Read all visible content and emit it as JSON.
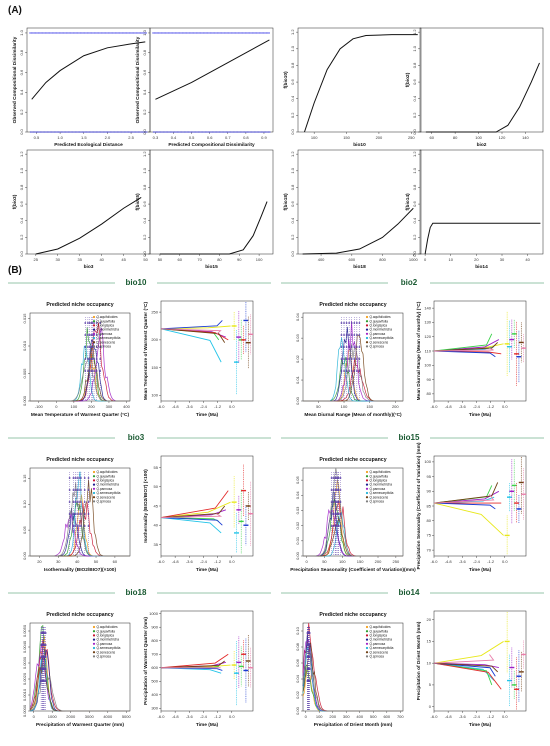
{
  "panel_a": {
    "label": "(A)",
    "charts": [
      {
        "type": "scatter_line",
        "ylabel": "Observed Compositional Dissimilarity",
        "xlabel": "Predicted Ecological Distance",
        "xticks": [
          "0.5",
          "1.0",
          "1.5",
          "2.0",
          "2.5"
        ],
        "xlim": [
          0.3,
          2.9
        ],
        "yticks": [
          "0.0",
          "0.2",
          "0.4",
          "0.6",
          "0.8",
          "1.0"
        ],
        "ylim": [
          0,
          1.05
        ],
        "curve": [
          [
            0.4,
            0.33
          ],
          [
            0.7,
            0.5
          ],
          [
            1.0,
            0.62
          ],
          [
            1.5,
            0.77
          ],
          [
            2.0,
            0.85
          ],
          [
            2.5,
            0.89
          ],
          [
            2.8,
            0.91
          ]
        ],
        "points_top": 1.0,
        "points_bottom": 0.0
      },
      {
        "type": "scatter_line",
        "ylabel": "Observed Compositional Dissimilarity",
        "xlabel": "Predicted Compositional Dissimilarity",
        "xticks": [
          "0.3",
          "0.4",
          "0.5",
          "0.6",
          "0.7",
          "0.8",
          "0.9"
        ],
        "xlim": [
          0.27,
          0.95
        ],
        "yticks": [
          "0.0",
          "0.2",
          "0.4",
          "0.6",
          "0.8",
          "1.0"
        ],
        "ylim": [
          0,
          1.05
        ],
        "curve": [
          [
            0.3,
            0.33
          ],
          [
            0.5,
            0.5
          ],
          [
            0.7,
            0.7
          ],
          [
            0.93,
            0.93
          ]
        ],
        "points_top": 1.0,
        "points_bottom": 0.0
      },
      {
        "type": "line",
        "ylabel": "f(bio10)",
        "xlabel": "bio10",
        "xticks": [
          "100",
          "150",
          "200",
          "250"
        ],
        "xlim": [
          75,
          265
        ],
        "yticks": [
          "0.0",
          "0.2",
          "0.4",
          "0.6",
          "0.8",
          "1.0",
          "1.2"
        ],
        "ylim": [
          0,
          1.25
        ],
        "curve": [
          [
            85,
            0.0
          ],
          [
            100,
            0.35
          ],
          [
            120,
            0.75
          ],
          [
            140,
            1.0
          ],
          [
            160,
            1.12
          ],
          [
            180,
            1.16
          ],
          [
            220,
            1.17
          ],
          [
            260,
            1.17
          ]
        ]
      },
      {
        "type": "line",
        "ylabel": "f(bio2)",
        "xlabel": "bio2",
        "xticks": [
          "60",
          "80",
          "100",
          "120",
          "140"
        ],
        "xlim": [
          50,
          155
        ],
        "yticks": [
          "0.0",
          "0.2",
          "0.4",
          "0.6",
          "0.8",
          "1.0",
          "1.2"
        ],
        "ylim": [
          0,
          1.25
        ],
        "curve": [
          [
            55,
            0
          ],
          [
            115,
            0
          ],
          [
            125,
            0.08
          ],
          [
            135,
            0.3
          ],
          [
            145,
            0.6
          ],
          [
            152,
            0.83
          ]
        ]
      },
      {
        "type": "line",
        "ylabel": "f(bio3)",
        "xlabel": "bio3",
        "xticks": [
          "25",
          "30",
          "35",
          "40",
          "45",
          "50"
        ],
        "xlim": [
          23,
          51
        ],
        "yticks": [
          "0.0",
          "0.2",
          "0.4",
          "0.6",
          "0.8",
          "1.0",
          "1.2"
        ],
        "ylim": [
          0,
          1.25
        ],
        "curve": [
          [
            25,
            0
          ],
          [
            30,
            0.06
          ],
          [
            35,
            0.19
          ],
          [
            40,
            0.36
          ],
          [
            45,
            0.55
          ],
          [
            49,
            0.68
          ]
        ]
      },
      {
        "type": "line",
        "ylabel": "f(bio15)",
        "xlabel": "bio15",
        "xticks": [
          "50",
          "60",
          "70",
          "80",
          "90",
          "100"
        ],
        "xlim": [
          45,
          107
        ],
        "yticks": [
          "0.0",
          "0.2",
          "0.4",
          "0.6",
          "0.8",
          "1.0",
          "1.2"
        ],
        "ylim": [
          0,
          1.25
        ],
        "curve": [
          [
            50,
            0
          ],
          [
            85,
            0
          ],
          [
            92,
            0.05
          ],
          [
            97,
            0.22
          ],
          [
            101,
            0.45
          ],
          [
            104,
            0.63
          ]
        ]
      },
      {
        "type": "line",
        "ylabel": "f(bio18)",
        "xlabel": "bio18",
        "xticks": [
          "400",
          "600",
          "800",
          "1000"
        ],
        "xlim": [
          250,
          1050
        ],
        "yticks": [
          "0.0",
          "0.2",
          "0.4",
          "0.6",
          "0.8",
          "1.0",
          "1.2"
        ],
        "ylim": [
          0,
          1.25
        ],
        "curve": [
          [
            280,
            0
          ],
          [
            500,
            0.01
          ],
          [
            650,
            0.06
          ],
          [
            800,
            0.2
          ],
          [
            900,
            0.36
          ],
          [
            1000,
            0.55
          ]
        ]
      },
      {
        "type": "line",
        "ylabel": "f(bio14)",
        "xlabel": "bio14",
        "xticks": [
          "0",
          "10",
          "20",
          "30",
          "40"
        ],
        "xlim": [
          -2,
          46
        ],
        "yticks": [
          "0.0",
          "0.2",
          "0.4",
          "0.6",
          "0.8",
          "1.0",
          "1.2"
        ],
        "ylim": [
          0,
          1.25
        ],
        "curve": [
          [
            0,
            0
          ],
          [
            1,
            0.18
          ],
          [
            2,
            0.32
          ],
          [
            3,
            0.37
          ],
          [
            45,
            0.37
          ]
        ]
      }
    ]
  },
  "panel_b": {
    "label": "(B)",
    "legend": [
      "Q.aquifolioides",
      "Q.guyavifolia",
      "Q.longispica",
      "Q.monimotricha",
      "Q.pannosa",
      "Q.semecarpifolia",
      "Q.senescens",
      "Q.spinosa"
    ],
    "series_colors": [
      "#f2a01e",
      "#2b9b2b",
      "#c8102e",
      "#1b1b8f",
      "#9e1fc6",
      "#22b3d6",
      "#6f3e12",
      "#7d7d7d"
    ],
    "pair_colors": [
      "#e8e81a",
      "#23c4e8",
      "#9e1fc6",
      "#3bd14a",
      "#e32b2b",
      "#1a3ad1",
      "#6f3e12",
      "#e87faa"
    ],
    "time_axis": {
      "xlabel": "Time (Ma)",
      "xticks": [
        "-6.0",
        "-4.8",
        "-3.6",
        "-2.4",
        "-1.2",
        "0.0"
      ]
    },
    "groups": [
      {
        "name": "bio10",
        "density_title": "Predicted niche occupancy",
        "density_xlabel": "Mean Temperature of Warmest Quarter (°C)",
        "dxticks": [
          "-100",
          "0",
          "100",
          "200",
          "300",
          "400"
        ],
        "dxlim": [
          -150,
          420
        ],
        "dyticks": [
          "0.000",
          "0.005",
          "0.010",
          "0.015"
        ],
        "dylim": [
          0,
          0.016
        ],
        "peaks": [
          200,
          190,
          230,
          215,
          250,
          165,
          205,
          180
        ],
        "time_ylabel": "Mean Temperature of Warmest Quarter (°C)",
        "tyticks": [
          "100",
          "150",
          "200",
          "250"
        ],
        "tylim": [
          90,
          270
        ],
        "root": 220,
        "tips": [
          225,
          160,
          205,
          200,
          200,
          235,
          195,
          210
        ]
      },
      {
        "name": "bio2",
        "density_title": "Predicted niche occupancy",
        "density_xlabel": "Mean Diurnal Range (Mean of monthly)(°C)",
        "dxticks": [
          "50",
          "100",
          "150",
          "200"
        ],
        "dxlim": [
          20,
          215
        ],
        "dyticks": [
          "0.00",
          "0.01",
          "0.02",
          "0.03",
          "0.04"
        ],
        "dylim": [
          0,
          0.042
        ],
        "peaks": [
          110,
          100,
          125,
          105,
          115,
          95,
          130,
          120
        ],
        "time_ylabel": "Mean Diurnal Range (Mean of monthly) (°C)",
        "tyticks": [
          "80",
          "90",
          "100",
          "110",
          "120",
          "130",
          "140"
        ],
        "tylim": [
          75,
          145
        ],
        "root": 110,
        "tips": [
          115,
          113,
          118,
          122,
          108,
          106,
          116,
          112
        ]
      },
      {
        "name": "bio3",
        "density_title": "Predicted niche occupancy",
        "density_xlabel": "Isothermality (BIO2/BIO7)(×100)",
        "dxticks": [
          "20",
          "30",
          "40",
          "50",
          "60"
        ],
        "dxlim": [
          15,
          68
        ],
        "dyticks": [
          "0.00",
          "0.05",
          "0.10",
          "0.15"
        ],
        "dylim": [
          0,
          0.17
        ],
        "peaks": [
          42,
          40,
          44,
          38,
          36,
          41,
          46,
          39
        ],
        "time_ylabel": "Isothermality (BIO2/BIO7) (×100)",
        "tyticks": [
          "35",
          "40",
          "45",
          "50",
          "55"
        ],
        "tylim": [
          32,
          58
        ],
        "root": 42,
        "tips": [
          46,
          38,
          44,
          41,
          49,
          40,
          45,
          43
        ]
      },
      {
        "name": "bio15",
        "density_title": "Predicted niche occupancy",
        "density_xlabel": "Precipitation Seasonality (Coefficient of Variation)(mm)",
        "dxticks": [
          "0",
          "50",
          "100",
          "150",
          "200",
          "250"
        ],
        "dxlim": [
          -10,
          270
        ],
        "dyticks": [
          "0.00",
          "0.01",
          "0.02",
          "0.03",
          "0.04",
          "0.05"
        ],
        "dylim": [
          0,
          0.058
        ],
        "peaks": [
          85,
          80,
          90,
          75,
          70,
          95,
          88,
          82
        ],
        "time_ylabel": "Precipitation Seasonality (Coefficient of Variation) (mm)",
        "tyticks": [
          "70",
          "75",
          "80",
          "85",
          "90",
          "95",
          "100"
        ],
        "tylim": [
          68,
          102
        ],
        "root": 86,
        "tips": [
          75,
          88,
          90,
          92,
          86,
          84,
          93,
          89
        ]
      },
      {
        "name": "bio18",
        "density_title": "Predicted niche occupancy",
        "density_xlabel": "Precipitation of Warmest Quarter (mm)",
        "dxticks": [
          "0",
          "1000",
          "2000",
          "3000",
          "4000",
          "5000"
        ],
        "dxlim": [
          -200,
          5200
        ],
        "dyticks": [
          "0.0000",
          "0.0010",
          "0.0020",
          "0.0030",
          "0.0040",
          "0.0050"
        ],
        "dylim": [
          0,
          0.0055
        ],
        "peaks": [
          500,
          450,
          550,
          600,
          400,
          520,
          480,
          650
        ],
        "time_ylabel": "Precipitation of Warmest Quarter (mm)",
        "tyticks": [
          "300",
          "400",
          "500",
          "600",
          "700",
          "800",
          "900",
          "1000"
        ],
        "tylim": [
          280,
          1020
        ],
        "root": 600,
        "tips": [
          620,
          560,
          640,
          610,
          700,
          580,
          650,
          600
        ]
      },
      {
        "name": "bio14",
        "density_title": "Predicted niche occupancy",
        "density_xlabel": "Precipitation of Driest Month (mm)",
        "dxticks": [
          "0",
          "100",
          "200",
          "300",
          "400",
          "500",
          "600",
          "700"
        ],
        "dxlim": [
          -20,
          720
        ],
        "dyticks": [
          "0.00",
          "0.02",
          "0.04",
          "0.06",
          "0.08",
          "0.10"
        ],
        "dylim": [
          0,
          0.11
        ],
        "peaks": [
          20,
          15,
          25,
          18,
          12,
          22,
          30,
          16
        ],
        "time_ylabel": "Precipitation of Driest Month (mm)",
        "tyticks": [
          "0",
          "5",
          "10",
          "15",
          "20"
        ],
        "tylim": [
          -1,
          22
        ],
        "root": 10,
        "tips": [
          15,
          6,
          9,
          5,
          4,
          7,
          8,
          12
        ]
      }
    ]
  }
}
